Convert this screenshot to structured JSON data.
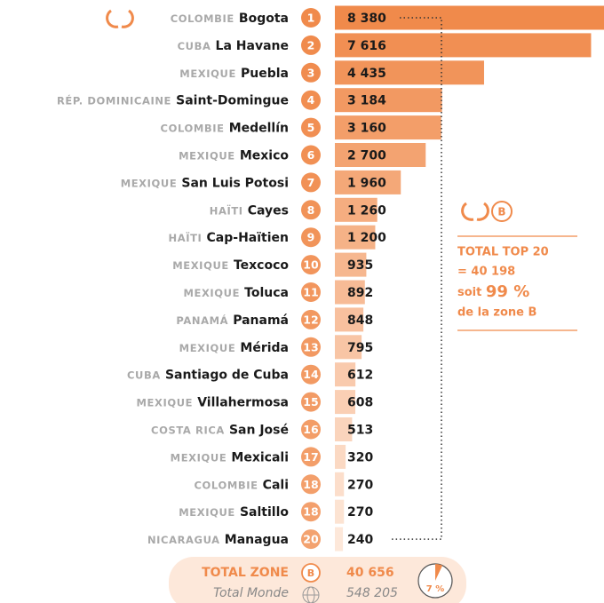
{
  "chart_data": {
    "type": "bar",
    "orientation": "horizontal",
    "countries": [
      "COLOMBIE",
      "CUBA",
      "MEXIQUE",
      "RÉP. DOMINICAINE",
      "COLOMBIE",
      "MEXIQUE",
      "MEXIQUE",
      "HAÏTI",
      "HAÏTI",
      "MEXIQUE",
      "MEXIQUE",
      "PANAMÁ",
      "MEXIQUE",
      "CUBA",
      "MEXIQUE",
      "COSTA RICA",
      "MEXIQUE",
      "COLOMBIE",
      "MEXIQUE",
      "NICARAGUA"
    ],
    "categories": [
      "Bogota",
      "La Havane",
      "Puebla",
      "Saint-Domingue",
      "Medellín",
      "Mexico",
      "San Luis Potosi",
      "Cayes",
      "Cap-Haïtien",
      "Texcoco",
      "Toluca",
      "Panamá",
      "Mérida",
      "Santiago de Cuba",
      "Villahermosa",
      "San José",
      "Mexicali",
      "Cali",
      "Saltillo",
      "Managua"
    ],
    "ranks": [
      1,
      2,
      3,
      4,
      5,
      6,
      7,
      8,
      9,
      10,
      11,
      12,
      13,
      14,
      15,
      16,
      17,
      18,
      18,
      20
    ],
    "values": [
      8380,
      7616,
      4435,
      3184,
      3160,
      2700,
      1960,
      1260,
      1200,
      935,
      892,
      848,
      795,
      612,
      608,
      513,
      320,
      270,
      270,
      240
    ],
    "value_labels": [
      "8 380",
      "7 616",
      "4 435",
      "3 184",
      "3 160",
      "2 700",
      "1 960",
      "1 260",
      "1 200",
      "935",
      "892",
      "848",
      "795",
      "612",
      "608",
      "513",
      "320",
      "270",
      "270",
      "240"
    ],
    "color": "#f08a4b",
    "xlim": [
      0,
      8000
    ],
    "side_box": {
      "zone": "B",
      "lines": [
        "TOTAL TOP 20",
        "= 40 198"
      ],
      "share_prefix": "soit",
      "share": "99 %",
      "share_suffix": "de la zone B"
    },
    "footer": {
      "total_label": "TOTAL ZONE",
      "zone": "B",
      "total": {
        "value": 40656,
        "label": "40 656"
      },
      "world_label": "Total Monde",
      "world": {
        "value": 548205,
        "label": "548 205"
      },
      "share": {
        "value": 7,
        "label": "7 %"
      }
    }
  }
}
